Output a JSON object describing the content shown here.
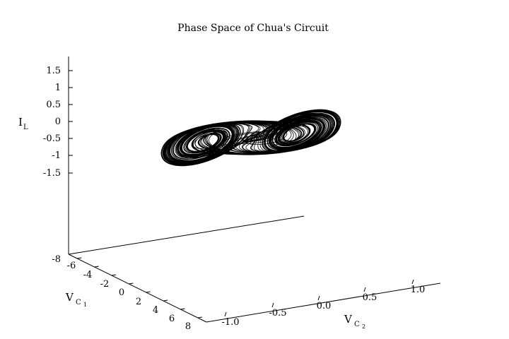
{
  "chart_data": {
    "type": "line",
    "projection": "3d",
    "title": "Phase Space of Chua's Circuit",
    "axes": {
      "x": {
        "label_main": "V",
        "label_sub": "C",
        "label_subsub": "2",
        "ticks": [
          "-1.0",
          "-0.5",
          "0.0",
          "0.5",
          "1.0"
        ],
        "tick_values": [
          -1.0,
          -0.5,
          0.0,
          0.5,
          1.0
        ]
      },
      "y": {
        "label_main": "V",
        "label_sub": "C",
        "label_subsub": "1",
        "ticks": [
          "-6",
          "-4",
          "-2",
          "0",
          "2",
          "4",
          "6",
          "8"
        ],
        "tick_values": [
          -6,
          -4,
          -2,
          0,
          2,
          4,
          6,
          8
        ]
      },
      "z": {
        "label_main": "I",
        "label_sub": "L",
        "ticks": [
          "1.5",
          "1",
          "0.5",
          "0",
          "-0.5",
          "-1",
          "-1.5",
          "-8"
        ],
        "tick_values": [
          1.5,
          1,
          0.5,
          0,
          -0.5,
          -1,
          -1.5,
          -8
        ]
      }
    },
    "series": [
      {
        "style": "line",
        "color": "#000000",
        "description_hidden": true,
        "attractor": "double-scroll",
        "lobes": [
          {
            "center": [
              -0.15,
              1.5,
              0.55
            ]
          },
          {
            "center": [
              0.15,
              -1.5,
              -0.55
            ]
          }
        ]
      }
    ]
  }
}
